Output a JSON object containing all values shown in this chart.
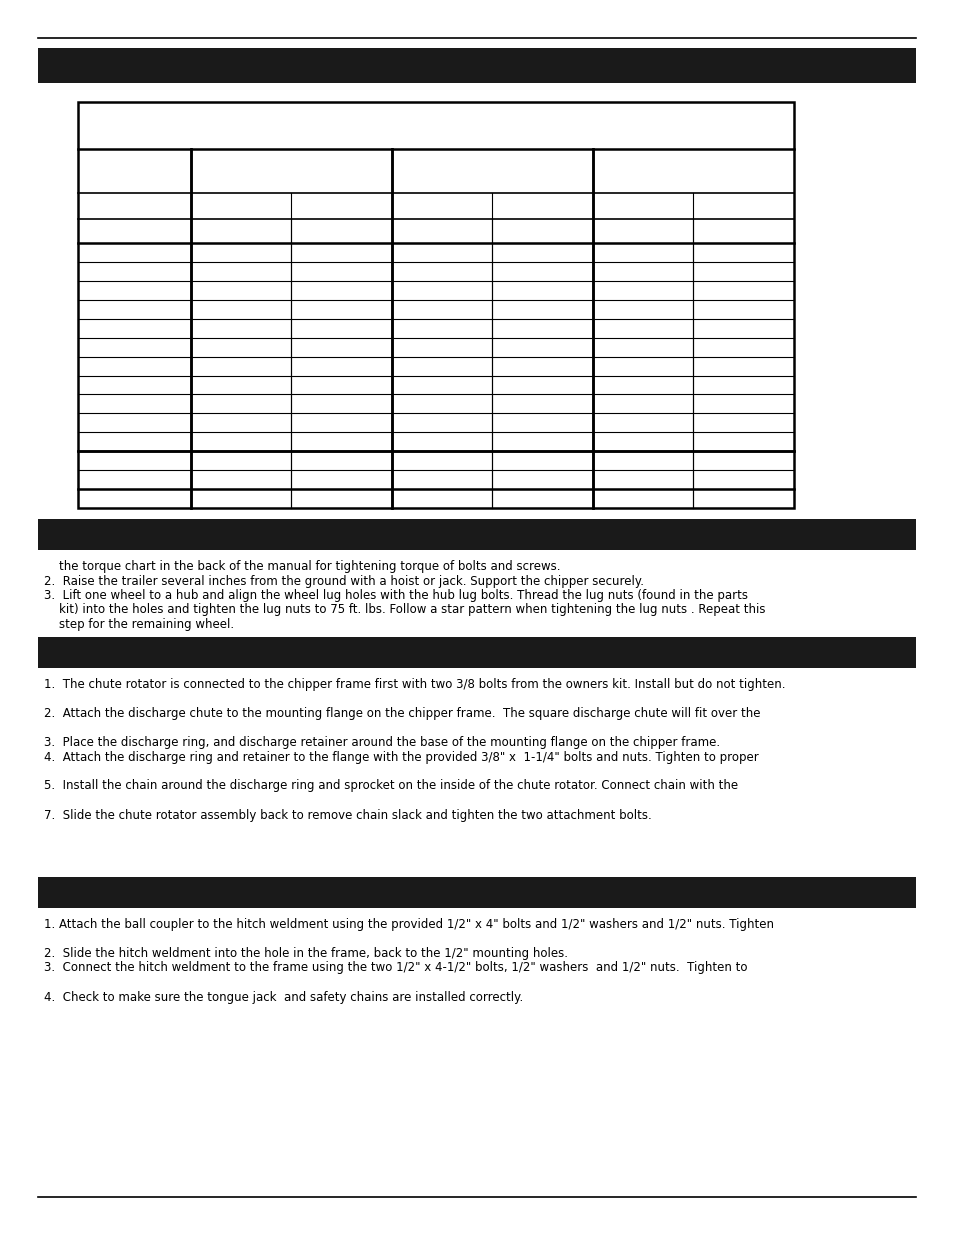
{
  "page_bg": "#ffffff",
  "bar_color": "#1a1a1a",
  "line_color": "#000000",
  "body_text_color": "#000000",
  "body_text_fontsize": 8.5,
  "section2_lines": [
    "    the torque chart in the back of the manual for tightening torque of bolts and screws.",
    "2.  Raise the trailer several inches from the ground with a hoist or jack. Support the chipper securely.",
    "3.  Lift one wheel to a hub and align the wheel lug holes with the hub lug bolts. Thread the lug nuts (found in the parts",
    "    kit) into the holes and tighten the lug nuts to 75 ft. lbs. Follow a star pattern when tightening the lug nuts . Repeat this",
    "    step for the remaining wheel."
  ],
  "section3_lines": [
    "1.  The chute rotator is connected to the chipper frame first with two 3/8 bolts from the owners kit. Install but do not tighten.",
    "",
    "2.  Attach the discharge chute to the mounting flange on the chipper frame.  The square discharge chute will fit over the",
    "",
    "3.  Place the discharge ring, and discharge retainer around the base of the mounting flange on the chipper frame.",
    "4.  Attach the discharge ring and retainer to the flange with the provided 3/8\" x  1-1/4\" bolts and nuts. Tighten to proper",
    "",
    "5.  Install the chain around the discharge ring and sprocket on the inside of the chute rotator. Connect chain with the",
    "",
    "7.  Slide the chute rotator assembly back to remove chain slack and tighten the two attachment bolts."
  ],
  "section4_lines": [
    "1. Attach the ball coupler to the hitch weldment using the provided 1/2\" x 4\" bolts and 1/2\" washers and 1/2\" nuts. Tighten",
    "",
    "2.  Slide the hitch weldment into the hole in the frame, back to the 1/2\" mounting holes.",
    "3.  Connect the hitch weldment to the frame using the two 1/2\" x 4-1/2\" bolts, 1/2\" washers  and 1/2\" nuts.  Tighten to",
    "",
    "4.  Check to make sure the tongue jack  and safety chains are installed correctly."
  ]
}
